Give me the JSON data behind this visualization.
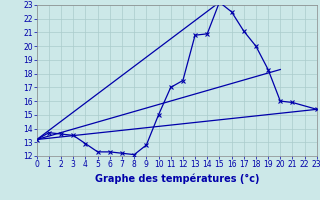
{
  "xlabel": "Graphe des températures (°c)",
  "xlim": [
    0,
    23
  ],
  "ylim": [
    12,
    23
  ],
  "xticks": [
    0,
    1,
    2,
    3,
    4,
    5,
    6,
    7,
    8,
    9,
    10,
    11,
    12,
    13,
    14,
    15,
    16,
    17,
    18,
    19,
    20,
    21,
    22,
    23
  ],
  "yticks": [
    12,
    13,
    14,
    15,
    16,
    17,
    18,
    19,
    20,
    21,
    22,
    23
  ],
  "bg_color": "#cce8e8",
  "grid_color": "#aacccc",
  "line_color": "#0000aa",
  "line1_x": [
    0,
    1,
    2,
    3,
    4,
    5,
    6,
    7,
    8,
    9,
    10,
    11,
    12,
    13,
    14,
    15,
    16,
    17,
    18,
    19,
    20,
    21,
    23
  ],
  "line1_y": [
    13.2,
    13.7,
    13.6,
    13.5,
    12.9,
    12.3,
    12.3,
    12.2,
    12.1,
    12.8,
    15.0,
    17.0,
    17.5,
    20.8,
    20.9,
    23.2,
    22.5,
    21.1,
    20.0,
    18.3,
    16.0,
    15.9,
    15.4
  ],
  "line2_x": [
    0,
    23
  ],
  "line2_y": [
    13.2,
    15.4
  ],
  "line3_x": [
    0,
    20
  ],
  "line3_y": [
    13.2,
    18.3
  ],
  "line4_x": [
    0,
    15
  ],
  "line4_y": [
    13.2,
    23.2
  ],
  "label_color": "#0000aa",
  "tick_label_color": "#0000aa"
}
